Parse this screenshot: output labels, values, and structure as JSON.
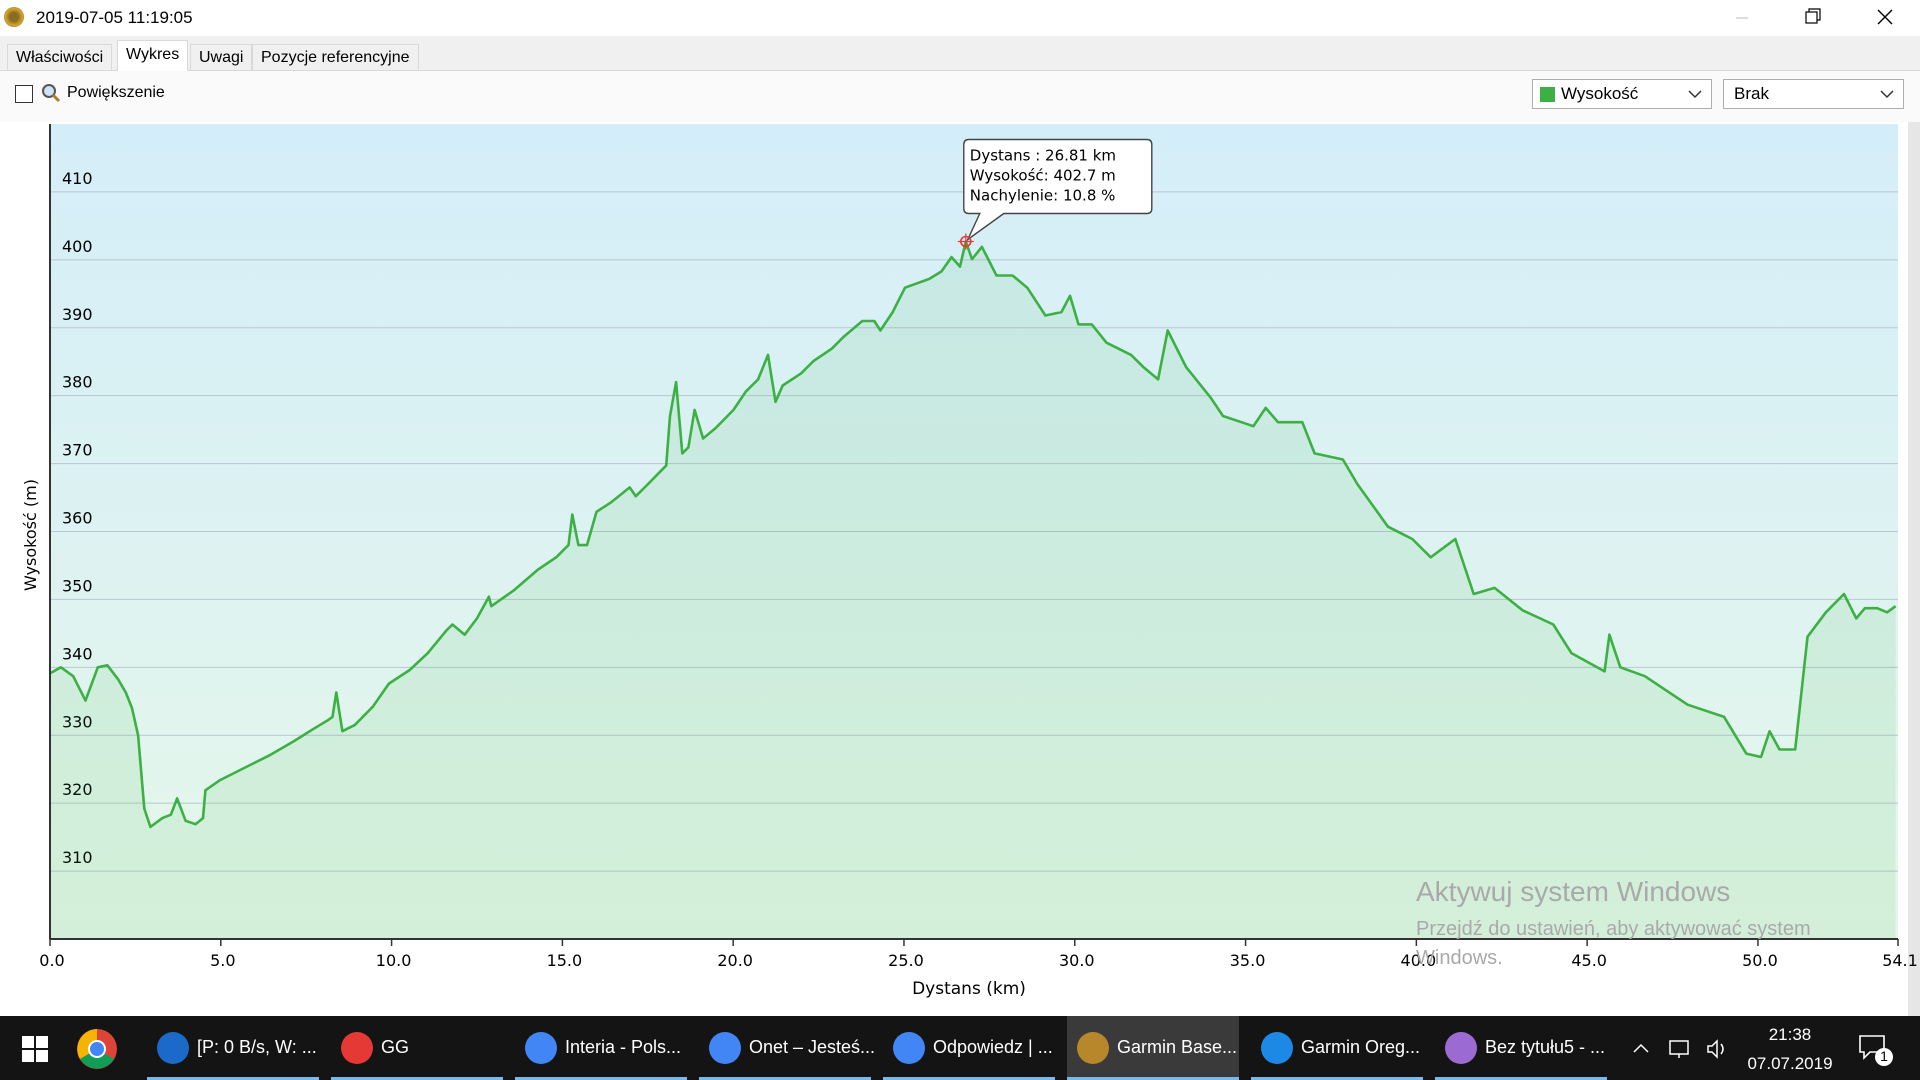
{
  "window": {
    "title": "2019-07-05 11:19:05"
  },
  "tabs": [
    "Właściwości",
    "Wykres",
    "Uwagi",
    "Pozycje referencyjne"
  ],
  "toolbar": {
    "zoom": "Powiększenie",
    "second_select": "Brak"
  },
  "chart_data": {
    "type": "line",
    "x_label": "Dystans  (km)",
    "y_label": "Wysokość (m)",
    "xlim": [
      0,
      54.1
    ],
    "ylim": [
      300,
      420
    ],
    "xticks": [
      {
        "value": 0,
        "label": "0.0"
      },
      {
        "value": 5,
        "label": "5.0"
      },
      {
        "value": 10,
        "label": "10.0"
      },
      {
        "value": 15,
        "label": "15.0"
      },
      {
        "value": 20,
        "label": "20.0"
      },
      {
        "value": 25,
        "label": "25.0"
      },
      {
        "value": 30,
        "label": "30.0"
      },
      {
        "value": 35,
        "label": "35.0"
      },
      {
        "value": 40,
        "label": "40.0"
      },
      {
        "value": 45,
        "label": "45.0"
      },
      {
        "value": 50,
        "label": "50.0"
      },
      54.1
    ],
    "yticks": [
      310,
      320,
      330,
      340,
      350,
      360,
      370,
      380,
      390,
      400,
      410
    ],
    "grid": true,
    "x": [
      0,
      0.32,
      0.68,
      1.04,
      1.4,
      1.68,
      2.0,
      2.22,
      2.4,
      2.58,
      2.76,
      2.94,
      3.29,
      3.54,
      3.72,
      3.97,
      4.26,
      4.48,
      4.55,
      4.98,
      5.69,
      6.41,
      7.13,
      7.67,
      8.13,
      8.27,
      8.38,
      8.56,
      8.92,
      9.45,
      9.92,
      10.53,
      11.06,
      11.6,
      11.78,
      12.14,
      12.5,
      12.85,
      12.92,
      13.57,
      14.29,
      14.82,
      15.18,
      15.29,
      15.47,
      15.72,
      16.0,
      16.43,
      16.97,
      17.15,
      17.51,
      17.86,
      18.04,
      18.15,
      18.33,
      18.51,
      18.69,
      18.87,
      19.12,
      19.48,
      20.01,
      20.37,
      20.73,
      21.02,
      21.24,
      21.45,
      21.99,
      22.35,
      22.88,
      23.24,
      23.78,
      24.13,
      24.31,
      24.67,
      25.03,
      25.74,
      26.1,
      26.39,
      26.64,
      26.81,
      26.99,
      27.28,
      27.71,
      28.18,
      28.61,
      29.14,
      29.61,
      29.86,
      30.11,
      30.5,
      30.93,
      31.65,
      32.01,
      32.44,
      32.72,
      33.26,
      33.98,
      34.34,
      35.23,
      35.59,
      35.95,
      36.66,
      37.02,
      37.85,
      38.27,
      39.17,
      39.88,
      40.42,
      41.14,
      41.68,
      42.29,
      43.11,
      44.01,
      44.54,
      45.51,
      45.65,
      45.97,
      46.69,
      47.94,
      49.01,
      49.66,
      50.09,
      50.34,
      50.63,
      51.09,
      51.45,
      51.99,
      52.52,
      52.88,
      53.13,
      53.49,
      53.78,
      54.03
    ],
    "series": [
      {
        "name": "Wysokość",
        "color": "#3cb043",
        "values": [
          339.1,
          340.0,
          338.7,
          335.1,
          340.0,
          340.3,
          338.2,
          336.3,
          334.0,
          330.0,
          319.2,
          316.5,
          317.8,
          318.3,
          320.7,
          317.4,
          316.9,
          317.8,
          321.9,
          323.4,
          325.2,
          327.0,
          329.1,
          330.8,
          332.2,
          332.7,
          336.3,
          330.6,
          331.5,
          334.2,
          337.6,
          339.6,
          342.1,
          345.4,
          346.3,
          344.8,
          347.2,
          350.4,
          349.0,
          351.3,
          354.4,
          356.2,
          358.0,
          362.5,
          358.0,
          358.0,
          362.9,
          364.3,
          366.5,
          365.2,
          367.0,
          368.8,
          369.7,
          377.0,
          382.0,
          371.5,
          372.4,
          377.9,
          373.7,
          375.2,
          377.9,
          380.6,
          382.4,
          386.0,
          379.1,
          381.5,
          383.3,
          385.1,
          386.9,
          388.7,
          391.0,
          391.0,
          389.6,
          392.3,
          395.9,
          397.2,
          398.3,
          400.4,
          399.0,
          402.7,
          400.1,
          401.9,
          397.7,
          397.7,
          395.9,
          391.8,
          392.3,
          394.7,
          390.5,
          390.5,
          387.8,
          386.0,
          384.2,
          382.4,
          389.6,
          384.2,
          379.7,
          377.0,
          375.5,
          378.2,
          376.1,
          376.1,
          371.5,
          370.6,
          367.0,
          360.7,
          358.9,
          356.2,
          358.9,
          350.8,
          351.7,
          348.4,
          346.3,
          342.1,
          339.4,
          344.8,
          340.0,
          338.7,
          334.5,
          332.7,
          327.3,
          326.8,
          330.6,
          327.9,
          327.9,
          344.5,
          348.1,
          350.8,
          347.2,
          348.7,
          348.7,
          348.1,
          349.0
        ]
      }
    ],
    "tooltip": {
      "x": 26.81,
      "y": 402.7,
      "lines": [
        "Dystans : 26.81 km",
        "Wysokość: 402.7 m",
        "Nachylenie: 10.8 %"
      ]
    }
  },
  "watermark": {
    "title": "Aktywuj system Windows",
    "text": "Przejdź do ustawień, aby aktywować system Windows."
  },
  "taskbar": {
    "items": [
      "[P: 0 B/s, W: ...",
      "GG",
      "Interia - Pols...",
      "Onet – Jesteś...",
      "Odpowiedz | ...",
      "Garmin Base...",
      "Garmin Oreg...",
      "Bez tytułu5 - ..."
    ],
    "time": "21:38",
    "date": "07.07.2019",
    "notifications": "1"
  }
}
